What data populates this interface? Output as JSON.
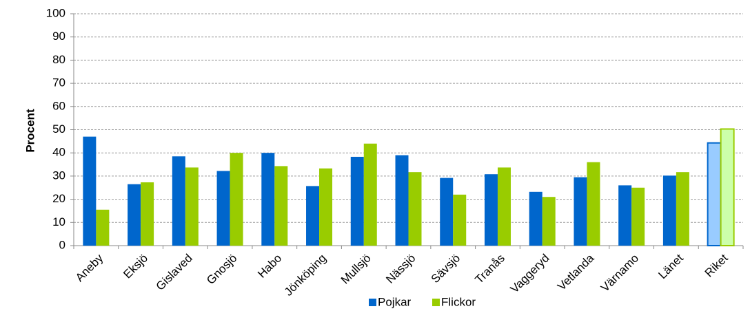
{
  "chart_data": {
    "type": "bar",
    "ylabel": "Procent",
    "categories": [
      "Aneby",
      "Eksjö",
      "Gislaved",
      "Gnosjö",
      "Habo",
      "Jönköping",
      "Mullsjö",
      "Nässjö",
      "Sävsjö",
      "Tranås",
      "Vaggeryd",
      "Vetlanda",
      "Värnamo",
      "Länet",
      "Riket"
    ],
    "series": [
      {
        "name": "Pojkar",
        "color": "#0066cc",
        "values": [
          47,
          26.5,
          38.5,
          32.2,
          40,
          25.7,
          38.3,
          39,
          29.2,
          30.8,
          23.2,
          29.5,
          26,
          30.2,
          44.3
        ],
        "fills": [
          "#0066cc",
          "#0066cc",
          "#0066cc",
          "#0066cc",
          "#0066cc",
          "#0066cc",
          "#0066cc",
          "#0066cc",
          "#0066cc",
          "#0066cc",
          "#0066cc",
          "#0066cc",
          "#0066cc",
          "#0066cc",
          "#99ccff"
        ]
      },
      {
        "name": "Flickor",
        "color": "#99cc00",
        "values": [
          15.5,
          27.3,
          33.7,
          40,
          34.3,
          33.3,
          44,
          31.7,
          22,
          33.7,
          21,
          36,
          25,
          31.7,
          50.3
        ],
        "fills": [
          "#99cc00",
          "#99cc00",
          "#99cc00",
          "#99cc00",
          "#99cc00",
          "#99cc00",
          "#99cc00",
          "#99cc00",
          "#99cc00",
          "#99cc00",
          "#99cc00",
          "#99cc00",
          "#99cc00",
          "#99cc00",
          "#ccffaa"
        ]
      }
    ],
    "ylim": [
      0,
      100
    ],
    "yticks": [
      0,
      10,
      20,
      30,
      40,
      50,
      60,
      70,
      80,
      90,
      100
    ],
    "grid": true,
    "legend": "bottom"
  }
}
